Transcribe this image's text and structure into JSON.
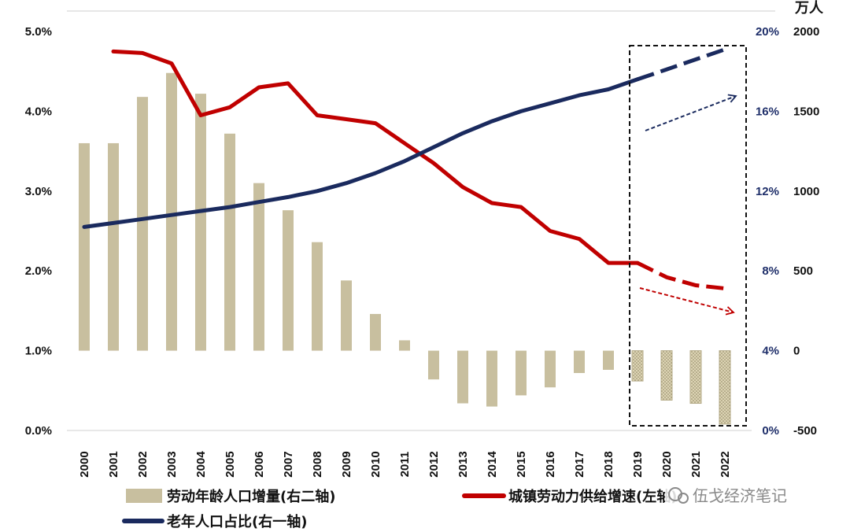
{
  "chart_data": {
    "type": "bar+line",
    "categories": [
      "2000",
      "2001",
      "2002",
      "2003",
      "2004",
      "2005",
      "2006",
      "2007",
      "2008",
      "2009",
      "2010",
      "2011",
      "2012",
      "2013",
      "2014",
      "2015",
      "2016",
      "2017",
      "2018",
      "2019",
      "2020",
      "2021",
      "2022"
    ],
    "forecast_start": "2019",
    "left_axis": {
      "ticks": [
        "0.0%",
        "1.0%",
        "2.0%",
        "3.0%",
        "4.0%",
        "5.0%"
      ],
      "range": [
        0,
        5
      ]
    },
    "right_axis_1": {
      "ticks": [
        "0%",
        "4%",
        "8%",
        "12%",
        "16%",
        "20%"
      ],
      "range": [
        0,
        20
      ]
    },
    "right_axis_2": {
      "unit": "万人",
      "ticks": [
        "-500",
        "0",
        "500",
        "1000",
        "1500",
        "2000"
      ],
      "range": [
        -500,
        2000
      ]
    },
    "series": [
      {
        "name": "劳动年龄人口增量(右二轴)",
        "type": "bar",
        "axis": "right_axis_2",
        "color": "#c8bf9f",
        "values": [
          1300,
          1300,
          1590,
          1740,
          1610,
          1360,
          1050,
          880,
          680,
          440,
          230,
          65,
          -180,
          -330,
          -350,
          -280,
          -230,
          -140,
          -120,
          -190,
          -310,
          -330,
          -460
        ]
      },
      {
        "name": "城镇劳动力供给增速(左轴)",
        "type": "line",
        "axis": "left_axis",
        "color": "#c00000",
        "values": [
          null,
          4.75,
          4.73,
          4.6,
          3.95,
          4.05,
          4.3,
          4.35,
          3.95,
          3.9,
          3.85,
          3.6,
          3.35,
          3.05,
          2.85,
          2.8,
          2.5,
          2.4,
          2.1,
          2.1,
          1.92,
          1.82,
          1.78
        ]
      },
      {
        "name": "老年人口占比(右一轴)",
        "type": "line",
        "axis": "right_axis_1",
        "color": "#1a2a5e",
        "values": [
          10.2,
          10.4,
          10.6,
          10.8,
          11.0,
          11.2,
          11.45,
          11.7,
          12.0,
          12.4,
          12.9,
          13.5,
          14.2,
          14.9,
          15.5,
          16.0,
          16.4,
          16.8,
          17.1,
          17.6,
          18.1,
          18.6,
          19.1
        ]
      }
    ],
    "legend": [
      {
        "label": "劳动年龄人口增量(右二轴)",
        "swatch": "bar",
        "color": "#c8bf9f"
      },
      {
        "label": "城镇劳动力供给增速(左轴)",
        "swatch": "line",
        "color": "#c00000"
      },
      {
        "label": "老年人口占比(右一轴)",
        "swatch": "line",
        "color": "#1a2a5e"
      }
    ],
    "watermark": "伍戈经济笔记"
  }
}
